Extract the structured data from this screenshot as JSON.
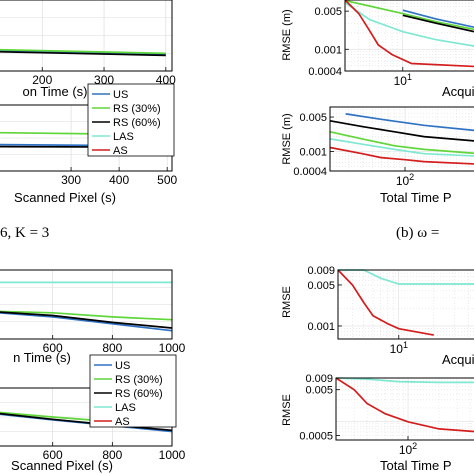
{
  "figure": {
    "caption_left": "6, K = 3",
    "caption_right": "(b) ω ="
  },
  "colors": {
    "US": "#2f72c4",
    "RS (30%)": "#5fd63a",
    "RS (60%)": "#000000",
    "LAS": "#7fe8d2",
    "AS": "#d41d1d"
  },
  "chart_data": [
    {
      "id": "top-left-acq",
      "type": "line",
      "xlabel": "on Time (s)",
      "ylabel": "",
      "xlim": [
        130,
        410
      ],
      "ylim": [
        0,
        1
      ],
      "xticks": [
        200,
        300,
        400
      ],
      "grid": true,
      "series": [
        {
          "name": "US",
          "x": [
            130,
            400
          ],
          "y": [
            0.28,
            0.23
          ]
        },
        {
          "name": "RS (30%)",
          "x": [
            130,
            400
          ],
          "y": [
            0.3,
            0.25
          ]
        },
        {
          "name": "RS (60%)",
          "x": [
            130,
            400
          ],
          "y": [
            0.27,
            0.22
          ]
        }
      ]
    },
    {
      "id": "top-left-pix",
      "type": "line",
      "xlabel": "Scanned Pixel (s)",
      "ylabel": "",
      "xlim": [
        150,
        510
      ],
      "ylim": [
        0,
        1
      ],
      "xticks": [
        300,
        400,
        500
      ],
      "grid": true,
      "legend": {
        "position": "top-right",
        "entries": [
          "US",
          "RS (30%)",
          "RS (60%)",
          "LAS",
          "AS"
        ]
      },
      "series": [
        {
          "name": "RS (30%)",
          "x": [
            150,
            500
          ],
          "y": [
            0.58,
            0.55
          ]
        },
        {
          "name": "US",
          "x": [
            150,
            500
          ],
          "y": [
            0.4,
            0.38
          ]
        },
        {
          "name": "RS (60%)",
          "x": [
            150,
            500
          ],
          "y": [
            0.37,
            0.36
          ]
        }
      ]
    },
    {
      "id": "bottom-left-acq",
      "type": "line",
      "xlabel": "n Time (s)",
      "ylabel": "",
      "xlim": [
        420,
        1000
      ],
      "ylim": [
        0,
        1
      ],
      "xticks": [
        600,
        800,
        1000
      ],
      "grid": true,
      "series": [
        {
          "name": "LAS",
          "x": [
            420,
            1000
          ],
          "y": [
            0.82,
            0.82
          ]
        },
        {
          "name": "RS (30%)",
          "x": [
            420,
            600,
            800,
            1000
          ],
          "y": [
            0.4,
            0.38,
            0.32,
            0.28
          ]
        },
        {
          "name": "US",
          "x": [
            420,
            600,
            800,
            1000
          ],
          "y": [
            0.38,
            0.32,
            0.22,
            0.12
          ]
        },
        {
          "name": "RS (60%)",
          "x": [
            420,
            600,
            800,
            1000
          ],
          "y": [
            0.39,
            0.34,
            0.24,
            0.16
          ]
        }
      ]
    },
    {
      "id": "bottom-left-pix",
      "type": "line",
      "xlabel": "Scanned Pixel (s)",
      "ylabel": "",
      "xlim": [
        420,
        1000
      ],
      "ylim": [
        0,
        1
      ],
      "xticks": [
        600,
        800,
        1000
      ],
      "grid": true,
      "legend": {
        "position": "top-right",
        "entries": [
          "US",
          "RS (30%)",
          "RS (60%)",
          "LAS",
          "AS"
        ]
      },
      "series": [
        {
          "name": "US",
          "x": [
            420,
            600,
            800,
            1000
          ],
          "y": [
            0.55,
            0.45,
            0.35,
            0.25
          ]
        },
        {
          "name": "RS (30%)",
          "x": [
            420,
            600,
            800,
            1000
          ],
          "y": [
            0.58,
            0.5,
            0.42,
            0.35
          ]
        },
        {
          "name": "RS (60%)",
          "x": [
            420,
            600,
            800,
            1000
          ],
          "y": [
            0.56,
            0.46,
            0.36,
            0.27
          ]
        }
      ]
    },
    {
      "id": "top-right-acq",
      "type": "line",
      "xlabel": "Acquis",
      "ylabel": "RMSE (m)",
      "xscale": "log",
      "yscale": "log",
      "xlim": [
        3,
        50
      ],
      "ylim": [
        0.0004,
        0.008
      ],
      "xticks": [
        10
      ],
      "xticklabels": [
        "10^1"
      ],
      "yticks": [
        0.005,
        0.001,
        0.0004
      ],
      "yticklabels": [
        "0.005",
        "0.001",
        "0.0004"
      ],
      "grid": true,
      "series": [
        {
          "name": "RS (30%)",
          "x": [
            3,
            5,
            10,
            20,
            50
          ],
          "y": [
            0.0078,
            0.0062,
            0.0045,
            0.0032,
            0.0022
          ]
        },
        {
          "name": "US",
          "x": [
            10,
            20,
            50
          ],
          "y": [
            0.0052,
            0.0036,
            0.0024
          ]
        },
        {
          "name": "RS (60%)",
          "x": [
            10,
            20,
            50
          ],
          "y": [
            0.0042,
            0.003,
            0.002
          ]
        },
        {
          "name": "LAS",
          "x": [
            3,
            5,
            10,
            20,
            50
          ],
          "y": [
            0.0072,
            0.0035,
            0.0021,
            0.0015,
            0.0011
          ]
        },
        {
          "name": "AS",
          "x": [
            3,
            4,
            5,
            6,
            8,
            12,
            50
          ],
          "y": [
            0.008,
            0.0045,
            0.0022,
            0.0012,
            0.0008,
            0.00055,
            0.00048
          ]
        }
      ]
    },
    {
      "id": "top-right-total",
      "type": "line",
      "xlabel": "Total Time P",
      "ylabel": "RMSE (m)",
      "xscale": "log",
      "yscale": "log",
      "xlim": [
        20,
        500
      ],
      "ylim": [
        0.0004,
        0.008
      ],
      "xticks": [
        100
      ],
      "xticklabels": [
        "10^2"
      ],
      "yticks": [
        0.005,
        0.001,
        0.0004
      ],
      "yticklabels": [
        "0.005",
        "0.001",
        "0.0004"
      ],
      "grid": true,
      "series": [
        {
          "name": "US",
          "x": [
            28,
            60,
            150,
            500
          ],
          "y": [
            0.0058,
            0.0045,
            0.0034,
            0.0026
          ]
        },
        {
          "name": "RS (60%)",
          "x": [
            20,
            40,
            80,
            150,
            500
          ],
          "y": [
            0.0042,
            0.0032,
            0.0025,
            0.002,
            0.0016
          ]
        },
        {
          "name": "RS (30%)",
          "x": [
            20,
            40,
            80,
            150,
            500
          ],
          "y": [
            0.0025,
            0.0018,
            0.0013,
            0.0011,
            0.0009
          ]
        },
        {
          "name": "LAS",
          "x": [
            20,
            40,
            80,
            150,
            500
          ],
          "y": [
            0.0018,
            0.0014,
            0.0011,
            0.0009,
            0.0008
          ]
        },
        {
          "name": "AS",
          "x": [
            20,
            40,
            60,
            100,
            150,
            500
          ],
          "y": [
            0.0012,
            0.0009,
            0.00075,
            0.00068,
            0.00062,
            0.00055
          ]
        }
      ]
    },
    {
      "id": "bottom-right-acq",
      "type": "line",
      "xlabel": "Acquis",
      "ylabel": "RMSE",
      "xscale": "log",
      "yscale": "log",
      "xlim": [
        3,
        50
      ],
      "ylim": [
        0.0006,
        0.009
      ],
      "xticks": [
        10
      ],
      "xticklabels": [
        "10^1"
      ],
      "yticks": [
        0.009,
        0.005,
        0.001
      ],
      "yticklabels": [
        "0.009",
        "0.005",
        "0.001"
      ],
      "grid": true,
      "series": [
        {
          "name": "LAS",
          "x": [
            3,
            5,
            7,
            10,
            20,
            50
          ],
          "y": [
            0.009,
            0.009,
            0.0065,
            0.0052,
            0.0052,
            0.0052
          ]
        },
        {
          "name": "AS",
          "x": [
            3,
            4,
            5,
            6,
            8,
            10,
            20
          ],
          "y": [
            0.009,
            0.005,
            0.0025,
            0.0015,
            0.0011,
            0.0009,
            0.0007
          ]
        }
      ]
    },
    {
      "id": "bottom-right-total",
      "type": "line",
      "xlabel": "Total Time P",
      "ylabel": "RMSE",
      "xscale": "log",
      "yscale": "log",
      "xlim": [
        20,
        500
      ],
      "ylim": [
        0.0004,
        0.009
      ],
      "xticks": [
        100
      ],
      "xticklabels": [
        "10^2"
      ],
      "yticks": [
        0.009,
        0.005,
        0.0005
      ],
      "yticklabels": [
        "0.009",
        "0.005",
        "0.0005"
      ],
      "grid": true,
      "series": [
        {
          "name": "LAS",
          "x": [
            20,
            40,
            80,
            200,
            500
          ],
          "y": [
            0.009,
            0.0085,
            0.0075,
            0.0072,
            0.0072
          ]
        },
        {
          "name": "AS",
          "x": [
            20,
            30,
            40,
            60,
            100,
            200,
            500
          ],
          "y": [
            0.009,
            0.005,
            0.0025,
            0.0015,
            0.001,
            0.0007,
            0.0006
          ]
        }
      ]
    }
  ]
}
